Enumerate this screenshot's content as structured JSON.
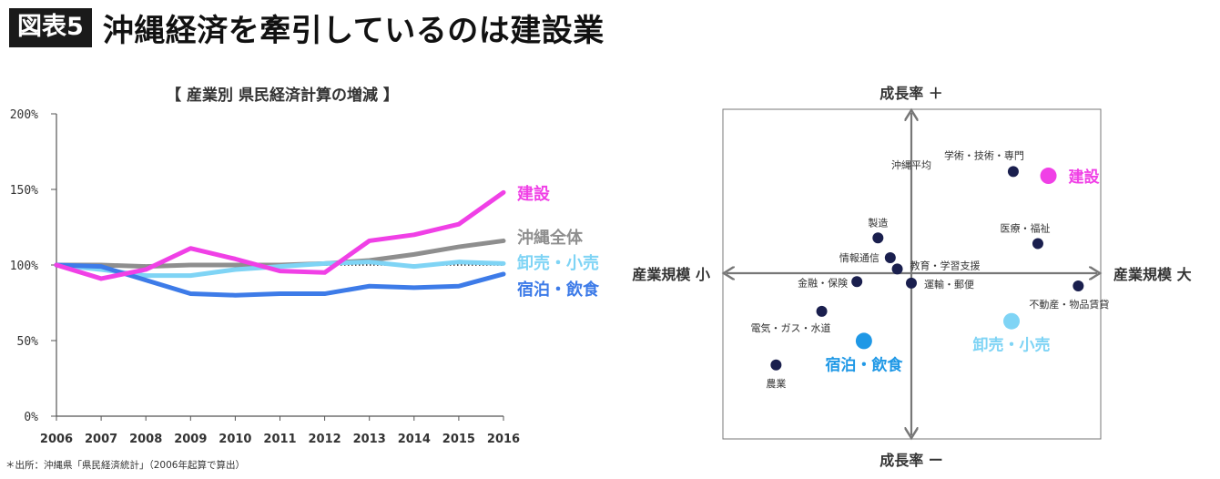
{
  "header": {
    "badge": "図表5",
    "title": "沖縄経済を牽引しているのは建設業"
  },
  "source": "＊出所：沖縄県「県民経済統計」（2006年起算で算出）",
  "chart_data": [
    {
      "type": "line",
      "title": "【 産業別 県民経済計算の増減 】",
      "x": [
        2006,
        2007,
        2008,
        2009,
        2010,
        2011,
        2012,
        2013,
        2014,
        2015,
        2016
      ],
      "yticks": [
        "200%",
        "150%",
        "100%",
        "50%",
        "0%"
      ],
      "ylim": [
        0,
        200
      ],
      "reference_line": 100,
      "series": [
        {
          "name": "建設",
          "color": "#f040e6",
          "values": [
            100,
            91,
            97,
            111,
            104,
            96,
            95,
            116,
            120,
            127,
            148
          ]
        },
        {
          "name": "沖縄全体",
          "color": "#8e8e8e",
          "values": [
            100,
            100,
            99,
            100,
            100,
            100,
            101,
            103,
            107,
            112,
            116
          ]
        },
        {
          "name": "卸売・小売",
          "color": "#7fd4f5",
          "values": [
            100,
            97,
            93,
            93,
            97,
            99,
            101,
            102,
            99,
            102,
            101
          ]
        },
        {
          "name": "宿泊・飲食",
          "color": "#3d7be8",
          "values": [
            100,
            99,
            90,
            81,
            80,
            81,
            81,
            86,
            85,
            86,
            94
          ]
        }
      ]
    },
    {
      "type": "scatter",
      "axes": {
        "top": "成長率 ＋",
        "bottom": "成長率 ー",
        "left": "産業規模 小",
        "right": "産業規模 大"
      },
      "center_label": "沖縄平均",
      "xlim": [
        -1,
        1
      ],
      "ylim": [
        -1,
        1
      ],
      "points": [
        {
          "label": "学術・技術・専門",
          "x": 0.58,
          "y": 0.72,
          "color": "#1a1f4e",
          "size": "small"
        },
        {
          "label": "建設",
          "x": 0.78,
          "y": 0.69,
          "color": "#f040e6",
          "size": "large",
          "highlight": true
        },
        {
          "label": "製造",
          "x": -0.19,
          "y": 0.25,
          "color": "#1a1f4e",
          "size": "small"
        },
        {
          "label": "医療・福祉",
          "x": 0.72,
          "y": 0.21,
          "color": "#1a1f4e",
          "size": "small"
        },
        {
          "label": "情報通信",
          "x": -0.12,
          "y": 0.11,
          "color": "#1a1f4e",
          "size": "small"
        },
        {
          "label": "教育・学習支援",
          "x": -0.08,
          "y": 0.03,
          "color": "#1a1f4e",
          "size": "small"
        },
        {
          "label": "金融・保険",
          "x": -0.31,
          "y": -0.06,
          "color": "#1a1f4e",
          "size": "small"
        },
        {
          "label": "運輸・郵便",
          "x": 0.0,
          "y": -0.07,
          "color": "#1a1f4e",
          "size": "small"
        },
        {
          "label": "不動産・物品賃貸",
          "x": 0.95,
          "y": -0.09,
          "color": "#1a1f4e",
          "size": "small"
        },
        {
          "label": "電気・ガス・水道",
          "x": -0.51,
          "y": -0.27,
          "color": "#1a1f4e",
          "size": "small"
        },
        {
          "label": "卸売・小売",
          "x": 0.57,
          "y": -0.34,
          "color": "#7fd4f5",
          "size": "large",
          "highlight": true
        },
        {
          "label": "宿泊・飲食",
          "x": -0.27,
          "y": -0.48,
          "color": "#1f98e6",
          "size": "large",
          "highlight": true
        },
        {
          "label": "農業",
          "x": -0.77,
          "y": -0.65,
          "color": "#1a1f4e",
          "size": "small"
        }
      ]
    }
  ]
}
